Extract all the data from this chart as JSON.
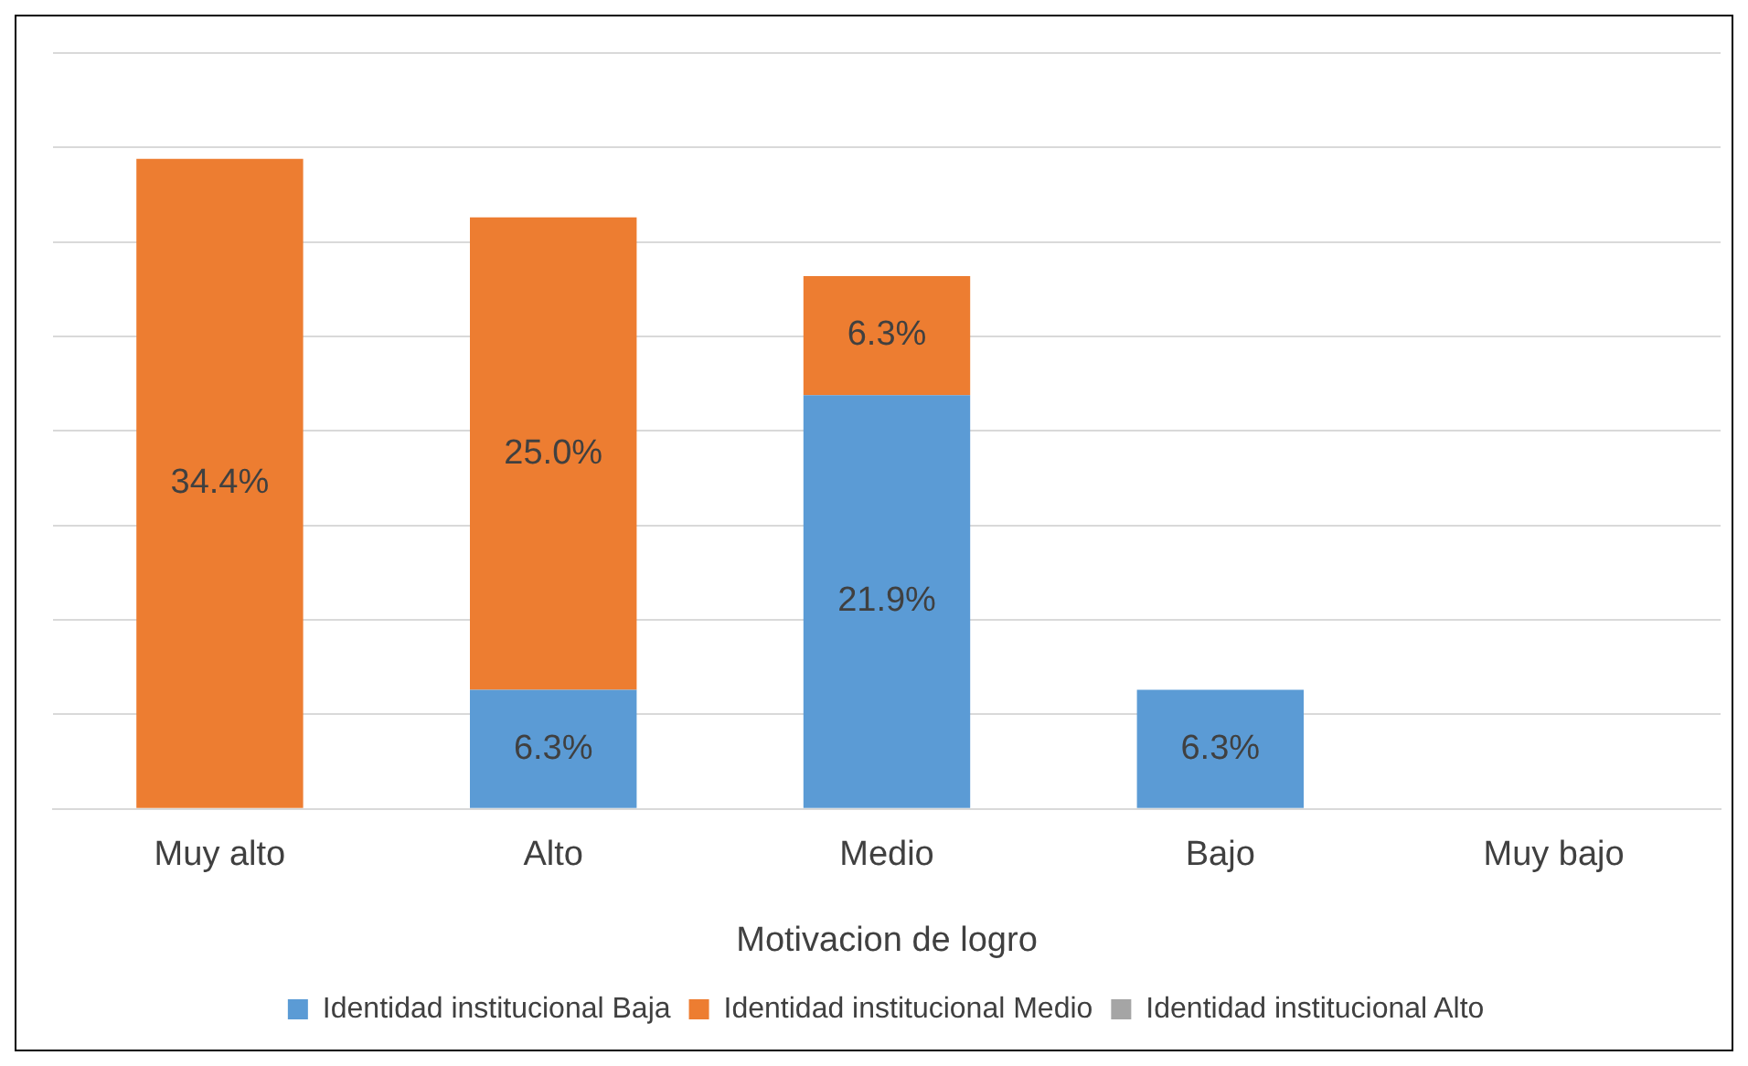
{
  "chart_data": {
    "type": "bar",
    "stacked": true,
    "categories": [
      "Muy alto",
      "Alto",
      "Medio",
      "Bajo",
      "Muy bajo"
    ],
    "xlabel": "Motivacion de logro",
    "series": [
      {
        "name": "Identidad institucional Baja",
        "color": "#5b9bd5",
        "values": [
          null,
          6.3,
          21.9,
          6.3,
          null
        ],
        "value_labels": [
          null,
          "6.3%",
          "21.9%",
          "6.3%",
          null
        ]
      },
      {
        "name": "Identidad institucional Medio",
        "color": "#ed7d31",
        "values": [
          34.4,
          25.0,
          6.3,
          null,
          null
        ],
        "value_labels": [
          "34.4%",
          "25.0%",
          "6.3%",
          null,
          null
        ]
      },
      {
        "name": "Identidad institucional Alto",
        "color": "#a5a5a5",
        "values": [
          null,
          null,
          null,
          null,
          null
        ]
      }
    ],
    "ylim": [
      0,
      40
    ],
    "yticks": [
      {
        "value": 0,
        "label": null
      },
      {
        "value": 5,
        "label": null
      },
      {
        "value": 10,
        "label": null
      },
      {
        "value": 15,
        "label": null
      },
      {
        "value": 20,
        "label": null
      },
      {
        "value": 25,
        "label": null
      },
      {
        "value": 30,
        "label": null
      },
      {
        "value": 35,
        "label": null
      },
      {
        "value": 40,
        "label": null
      }
    ],
    "grid": "y",
    "tick_labels": "x",
    "legend": "bottom"
  }
}
